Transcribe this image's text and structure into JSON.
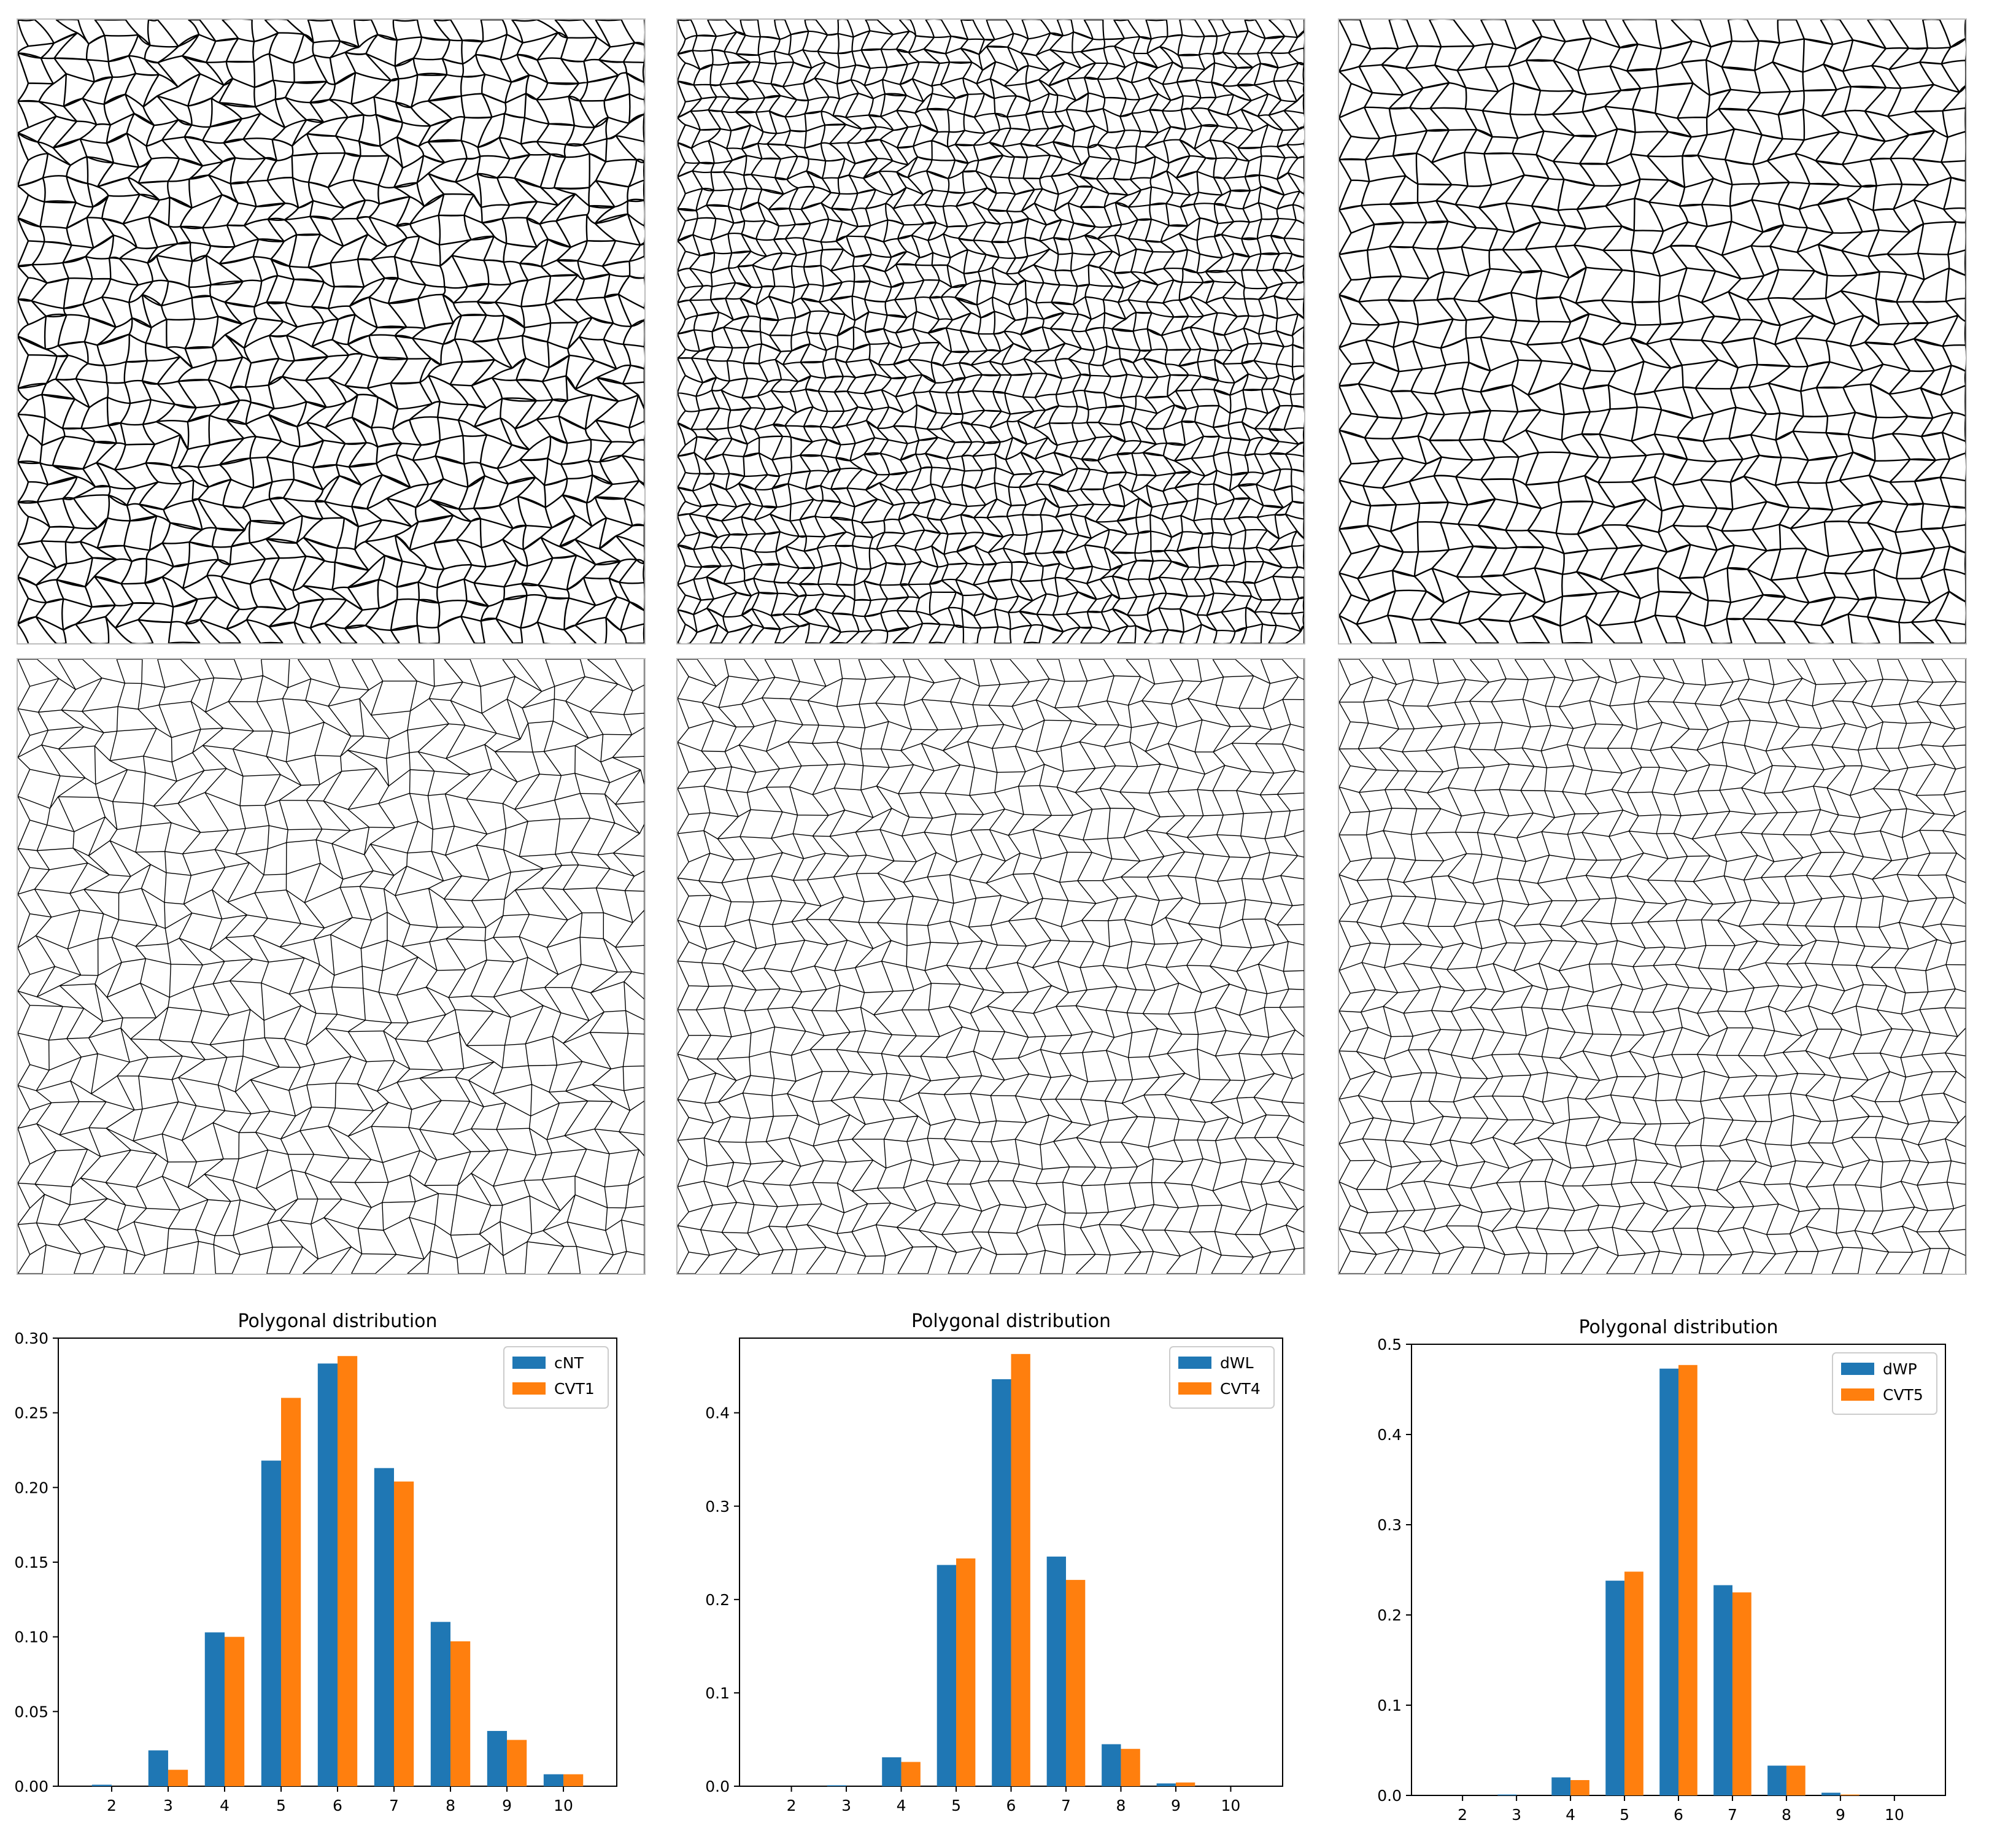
{
  "meshes": [
    {
      "row": "top",
      "col": 1,
      "style": "irregular"
    },
    {
      "row": "top",
      "col": 2,
      "style": "dense"
    },
    {
      "row": "top",
      "col": 3,
      "style": "regular"
    },
    {
      "row": "bottom",
      "col": 1,
      "style": "voronoi-irregular"
    },
    {
      "row": "bottom",
      "col": 2,
      "style": "voronoi"
    },
    {
      "row": "bottom",
      "col": 3,
      "style": "voronoi"
    }
  ],
  "colors": {
    "series_a": "#1f77b4",
    "series_b": "#ff7f0e"
  },
  "chart_data": [
    {
      "type": "bar",
      "title": "Polygonal distribution",
      "categories": [
        "2",
        "3",
        "4",
        "5",
        "6",
        "7",
        "8",
        "9",
        "10"
      ],
      "series": [
        {
          "name": "cNT",
          "values": [
            0.001,
            0.024,
            0.103,
            0.218,
            0.283,
            0.213,
            0.11,
            0.037,
            0.008
          ]
        },
        {
          "name": "CVT1",
          "values": [
            0.0,
            0.011,
            0.1,
            0.26,
            0.288,
            0.204,
            0.097,
            0.031,
            0.008
          ]
        }
      ],
      "ylim": [
        0,
        0.3
      ],
      "yticks": [
        "0.00",
        "0.05",
        "0.10",
        "0.15",
        "0.20",
        "0.25",
        "0.30"
      ],
      "legend": "top-right",
      "grid": false
    },
    {
      "type": "bar",
      "title": "Polygonal distribution",
      "categories": [
        "2",
        "3",
        "4",
        "5",
        "6",
        "7",
        "8",
        "9",
        "10"
      ],
      "series": [
        {
          "name": "dWL",
          "values": [
            0.0,
            0.001,
            0.031,
            0.237,
            0.436,
            0.246,
            0.045,
            0.003,
            0.0
          ]
        },
        {
          "name": "CVT4",
          "values": [
            0.0,
            0.0,
            0.026,
            0.244,
            0.463,
            0.221,
            0.04,
            0.004,
            0.0
          ]
        }
      ],
      "ylim": [
        0,
        0.48
      ],
      "yticks": [
        "0.0",
        "0.1",
        "0.2",
        "0.3",
        "0.4"
      ],
      "legend": "top-right",
      "grid": false
    },
    {
      "type": "bar",
      "title": "Polygonal distribution",
      "categories": [
        "2",
        "3",
        "4",
        "5",
        "6",
        "7",
        "8",
        "9",
        "10"
      ],
      "series": [
        {
          "name": "dWP",
          "values": [
            0.0,
            0.001,
            0.02,
            0.238,
            0.473,
            0.233,
            0.033,
            0.003,
            0.0
          ]
        },
        {
          "name": "CVT5",
          "values": [
            0.0,
            0.0,
            0.017,
            0.248,
            0.477,
            0.225,
            0.033,
            0.001,
            0.0
          ]
        }
      ],
      "ylim": [
        0,
        0.5
      ],
      "yticks": [
        "0.0",
        "0.1",
        "0.2",
        "0.3",
        "0.4",
        "0.5"
      ],
      "legend": "top-right",
      "grid": false
    }
  ]
}
